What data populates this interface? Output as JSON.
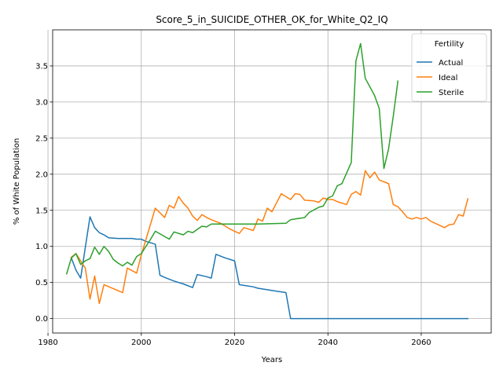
{
  "chart_data": {
    "type": "line",
    "title": "Score_5_in_SUICIDE_OTHER_OK_for_White_Q2_IQ",
    "xlabel": "Years",
    "ylabel": "% of White Population",
    "xlim": [
      1981,
      2075
    ],
    "ylim": [
      -0.2,
      4.0
    ],
    "xticks": [
      1980,
      2000,
      2020,
      2040,
      2060
    ],
    "yticks": [
      0.0,
      0.5,
      1.0,
      1.5,
      2.0,
      2.5,
      3.0,
      3.5
    ],
    "ytick_labels": [
      "0.0",
      "0.5",
      "1.0",
      "1.5",
      "2.0",
      "2.5",
      "3.0",
      "3.5"
    ],
    "grid": true,
    "legend": {
      "title": "Fertility",
      "position": "top-right"
    },
    "series": [
      {
        "name": "Actual",
        "color": "#1f77b4",
        "x": [
          1985,
          1986,
          1987,
          1989,
          1990,
          1991,
          1992,
          1993,
          1995,
          1998,
          1999,
          2000,
          2001,
          2003,
          2004,
          2005,
          2007,
          2009,
          2011,
          2012,
          2014,
          2015,
          2016,
          2018,
          2020,
          2021,
          2022,
          2024,
          2025,
          2027,
          2029,
          2031,
          2032,
          2035,
          2040,
          2045,
          2050,
          2055,
          2060,
          2065,
          2070
        ],
        "values": [
          0.84,
          0.67,
          0.56,
          1.41,
          1.26,
          1.19,
          1.16,
          1.12,
          1.11,
          1.11,
          1.1,
          1.1,
          1.07,
          1.03,
          0.6,
          0.57,
          0.52,
          0.48,
          0.43,
          0.61,
          0.58,
          0.56,
          0.89,
          0.84,
          0.8,
          0.47,
          0.46,
          0.44,
          0.42,
          0.4,
          0.38,
          0.36,
          0.0,
          0.0,
          0.0,
          0.0,
          0.0,
          0.0,
          0.0,
          0.0,
          0.0
        ]
      },
      {
        "name": "Ideal",
        "color": "#ff7f0e",
        "x": [
          1985,
          1986,
          1987,
          1988,
          1989,
          1990,
          1991,
          1992,
          1996,
          1997,
          1999,
          2000,
          2003,
          2005,
          2006,
          2007,
          2008,
          2009,
          2010,
          2011,
          2012,
          2013,
          2014,
          2015,
          2017,
          2019,
          2020,
          2021,
          2022,
          2024,
          2025,
          2026,
          2027,
          2028,
          2030,
          2032,
          2033,
          2034,
          2035,
          2037,
          2038,
          2039,
          2040,
          2041,
          2042,
          2044,
          2045,
          2046,
          2047,
          2048,
          2049,
          2050,
          2051,
          2053,
          2054,
          2055,
          2056,
          2057,
          2058,
          2059,
          2060,
          2061,
          2062,
          2063,
          2065,
          2066,
          2067,
          2068,
          2069,
          2070
        ],
        "values": [
          0.85,
          0.9,
          0.8,
          0.7,
          0.27,
          0.59,
          0.21,
          0.47,
          0.36,
          0.7,
          0.63,
          0.88,
          1.53,
          1.4,
          1.57,
          1.53,
          1.69,
          1.6,
          1.53,
          1.42,
          1.36,
          1.44,
          1.4,
          1.37,
          1.32,
          1.24,
          1.21,
          1.18,
          1.26,
          1.22,
          1.38,
          1.35,
          1.53,
          1.48,
          1.73,
          1.65,
          1.73,
          1.72,
          1.64,
          1.63,
          1.61,
          1.67,
          1.65,
          1.65,
          1.62,
          1.58,
          1.72,
          1.76,
          1.71,
          2.05,
          1.95,
          2.03,
          1.92,
          1.87,
          1.58,
          1.55,
          1.48,
          1.4,
          1.38,
          1.4,
          1.38,
          1.4,
          1.35,
          1.32,
          1.26,
          1.3,
          1.31,
          1.44,
          1.42,
          1.66
        ]
      },
      {
        "name": "Sterile",
        "color": "#2ca02c",
        "x": [
          1984,
          1985,
          1986,
          1987,
          1988,
          1989,
          1990,
          1991,
          1992,
          1993,
          1994,
          1995,
          1996,
          1997,
          1998,
          1999,
          2000,
          2002,
          2003,
          2006,
          2007,
          2009,
          2010,
          2011,
          2013,
          2014,
          2015,
          2017,
          2020,
          2025,
          2031,
          2032,
          2033,
          2035,
          2036,
          2038,
          2039,
          2040,
          2041,
          2042,
          2043,
          2045,
          2046,
          2047,
          2048,
          2050,
          2051,
          2052,
          2053,
          2054,
          2055
        ],
        "values": [
          0.62,
          0.84,
          0.9,
          0.75,
          0.8,
          0.83,
          0.99,
          0.89,
          1.0,
          0.93,
          0.82,
          0.77,
          0.73,
          0.78,
          0.74,
          0.86,
          0.9,
          1.1,
          1.21,
          1.1,
          1.2,
          1.16,
          1.21,
          1.19,
          1.28,
          1.27,
          1.31,
          1.31,
          1.31,
          1.31,
          1.32,
          1.37,
          1.38,
          1.4,
          1.47,
          1.54,
          1.56,
          1.67,
          1.7,
          1.84,
          1.87,
          2.16,
          3.57,
          3.81,
          3.33,
          3.09,
          2.91,
          2.08,
          2.35,
          2.8,
          3.29
        ]
      }
    ]
  }
}
